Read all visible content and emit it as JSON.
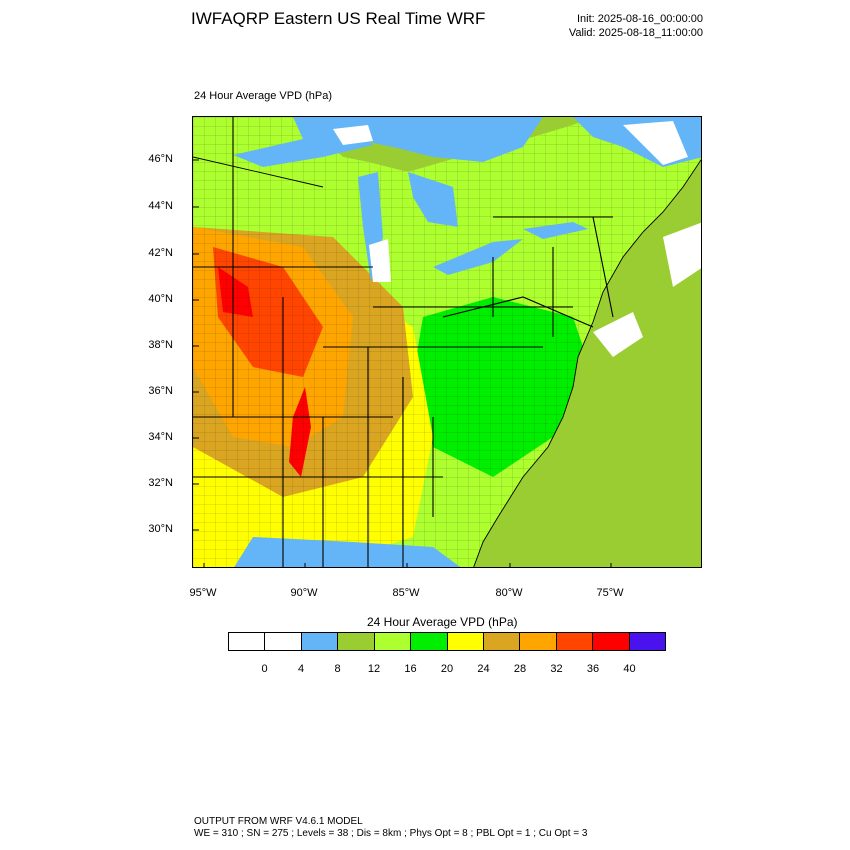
{
  "header": {
    "title": "IWFAQRP Eastern US Real Time WRF",
    "init": "Init: 2025-08-16_00:00:00",
    "valid": "Valid: 2025-08-18_11:00:00"
  },
  "plot": {
    "label": "24 Hour Average VPD   (hPa)",
    "lat_labels": [
      "46°N",
      "44°N",
      "42°N",
      "40°N",
      "38°N",
      "36°N",
      "34°N",
      "32°N",
      "30°N"
    ],
    "lon_labels": [
      "95°W",
      "90°W",
      "85°W",
      "80°W",
      "75°W"
    ]
  },
  "colorbar": {
    "title": "24 Hour Average VPD  (hPa)",
    "colors": [
      "#ffffff",
      "#ffffff",
      "#63b5f7",
      "#9acd32",
      "#adff2f",
      "#00ee00",
      "#ffff00",
      "#daa520",
      "#ffa500",
      "#ff4500",
      "#ff0000",
      "#4a12ee"
    ],
    "ticks": [
      "0",
      "4",
      "8",
      "12",
      "16",
      "20",
      "24",
      "28",
      "32",
      "36",
      "40"
    ]
  },
  "map_colors": {
    "ocean": "#9acd32",
    "lakes": "#63b5f7",
    "gulf": "#9acd32",
    "land_low": "#adff2f",
    "land_mid": "#00ee00",
    "land_24": "#ffff00",
    "land_28": "#daa520",
    "land_32": "#ffa500",
    "land_36": "#ff4500",
    "land_40": "#ff0000",
    "blank": "#ffffff"
  },
  "footer": {
    "line1": "OUTPUT FROM WRF V4.6.1 MODEL",
    "line2": "WE = 310 ; SN = 275 ; Levels = 38 ; Dis = 8km ; Phys Opt = 8 ; PBL Opt = 1 ; Cu Opt = 3"
  }
}
